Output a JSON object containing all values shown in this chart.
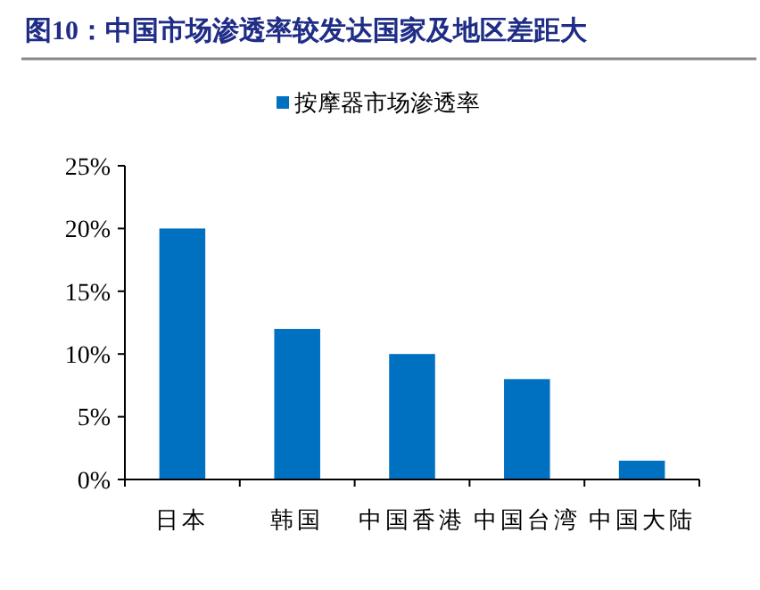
{
  "chart_data": {
    "type": "bar",
    "title": "图10：中国市场渗透率较发达国家及地区差距大",
    "categories": [
      "日本",
      "韩国",
      "中国香港",
      "中国台湾",
      "中国大陆"
    ],
    "series": [
      {
        "name": "按摩器市场渗透率",
        "color": "#0070c0",
        "values": [
          20,
          12,
          10,
          8,
          1.5
        ]
      }
    ],
    "ylim": [
      0,
      25
    ],
    "yticks": [
      {
        "value": 0,
        "label": "0%"
      },
      {
        "value": 5,
        "label": "5%"
      },
      {
        "value": 10,
        "label": "10%"
      },
      {
        "value": 15,
        "label": "15%"
      },
      {
        "value": 20,
        "label": "20%"
      },
      {
        "value": 25,
        "label": "25%"
      }
    ],
    "legend": "top",
    "grid": false
  }
}
